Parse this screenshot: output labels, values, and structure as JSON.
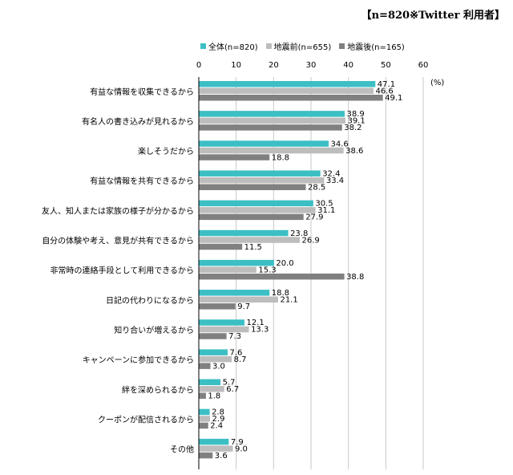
{
  "note": "【n=820※Twitter 利用者】",
  "unit": "(%)",
  "chart_data": {
    "type": "bar",
    "orientation": "horizontal",
    "categories": [
      "有益な情報を収集できるから",
      "有名人の書き込みが見れるから",
      "楽しそうだから",
      "有益な情報を共有できるから",
      "友人、知人または家族の様子が分かるから",
      "自分の体験や考え、意見が共有できるから",
      "非常時の連絡手段として利用できるから",
      "日記の代わりになるから",
      "知り合いが増えるから",
      "キャンペーンに参加できるから",
      "絆を深められるから",
      "クーポンが配信されるから",
      "その他"
    ],
    "series": [
      {
        "name": "全体(n=820)",
        "color": "#3cbfc4",
        "values": [
          47.1,
          38.9,
          34.6,
          32.4,
          30.5,
          23.8,
          20.0,
          18.8,
          12.1,
          7.6,
          5.7,
          2.8,
          7.9
        ]
      },
      {
        "name": "地震前(n=655)",
        "color": "#bdbdbd",
        "values": [
          46.6,
          39.1,
          38.6,
          33.4,
          31.1,
          26.9,
          15.3,
          21.1,
          13.3,
          8.7,
          6.7,
          2.9,
          9.0
        ]
      },
      {
        "name": "地震後(n=165)",
        "color": "#808080",
        "values": [
          49.1,
          38.2,
          18.8,
          28.5,
          27.9,
          11.5,
          38.8,
          9.7,
          7.3,
          3.0,
          1.8,
          2.4,
          3.6
        ]
      }
    ],
    "xlim": [
      0,
      60
    ],
    "xticks": [
      "0",
      "10",
      "20",
      "30",
      "40",
      "50",
      "60"
    ],
    "grid": true,
    "legend": "top"
  }
}
